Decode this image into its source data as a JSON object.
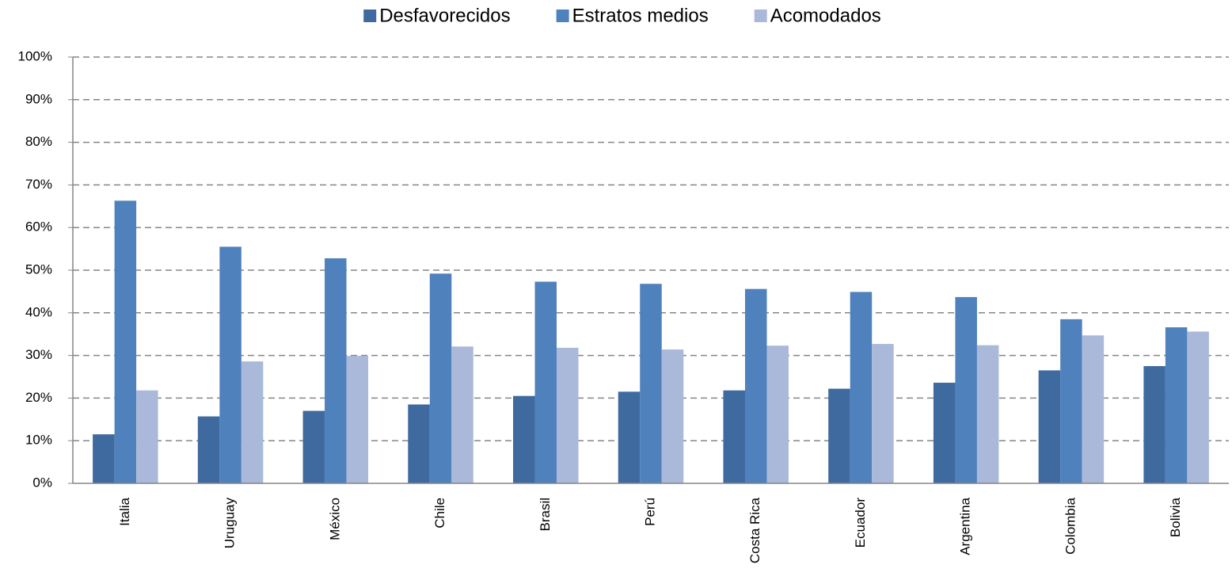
{
  "chart_data": {
    "type": "bar",
    "categories": [
      "Italia",
      "Uruguay",
      "México",
      "Chile",
      "Brasil",
      "Perú",
      "Costa Rica",
      "Ecuador",
      "Argentina",
      "Colombia",
      "Bolivia"
    ],
    "series": [
      {
        "name": "Desfavorecidos",
        "color": "#3f6aa0",
        "values": [
          11.5,
          15.7,
          17.0,
          18.5,
          20.5,
          21.5,
          21.8,
          22.2,
          23.6,
          26.5,
          27.5
        ]
      },
      {
        "name": "Estratos medios",
        "color": "#4f81bd",
        "values": [
          66.3,
          55.5,
          52.8,
          49.2,
          47.3,
          46.8,
          45.6,
          44.9,
          43.7,
          38.5,
          36.6
        ]
      },
      {
        "name": "Acomodados",
        "color": "#aab9d9",
        "values": [
          21.8,
          28.6,
          29.9,
          32.1,
          31.8,
          31.4,
          32.3,
          32.7,
          32.4,
          34.7,
          35.6
        ]
      }
    ],
    "ylim": [
      0,
      100
    ],
    "yticks": [
      {
        "value": 0,
        "label": "0%"
      },
      {
        "value": 10,
        "label": "10%"
      },
      {
        "value": 20,
        "label": "20%"
      },
      {
        "value": 30,
        "label": "30%"
      },
      {
        "value": 40,
        "label": "40%"
      },
      {
        "value": 50,
        "label": "50%"
      },
      {
        "value": 60,
        "label": "60%"
      },
      {
        "value": 70,
        "label": "70%"
      },
      {
        "value": 80,
        "label": "80%"
      },
      {
        "value": 90,
        "label": "90%"
      },
      {
        "value": 100,
        "label": "100%"
      }
    ],
    "grid": true,
    "legend": "top"
  }
}
